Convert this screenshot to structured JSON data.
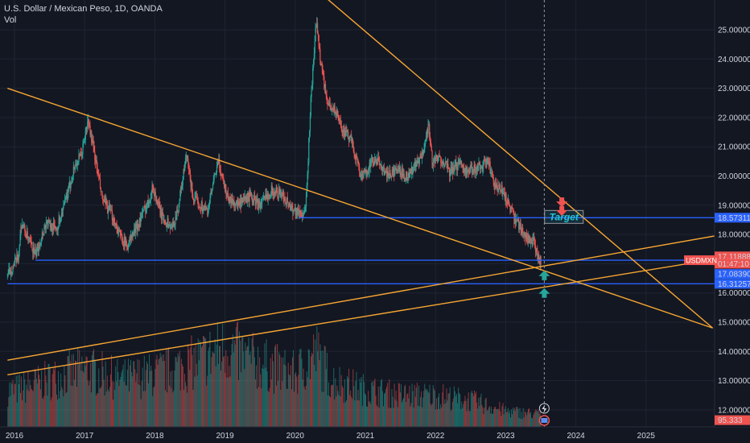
{
  "header": {
    "title": "U.S. Dollar / Mexican Peso, 1D, OANDA",
    "volume_label": "Vol"
  },
  "colors": {
    "background": "#131722",
    "grid": "#1f2433",
    "text": "#d1d4dc",
    "up": "#26a69a",
    "down": "#ef5350",
    "trendline": "#f7a632",
    "hline": "#2962ff",
    "target": "#26c6da"
  },
  "chart_data": {
    "type": "candlestick",
    "symbol": "USDMXN",
    "x_ticks": [
      "2016",
      "2017",
      "2018",
      "2019",
      "2020",
      "2021",
      "2022",
      "2023",
      "2024",
      "2025"
    ],
    "y_ticks": [
      "25.00000",
      "24.00000",
      "23.00000",
      "22.00000",
      "21.00000",
      "20.00000",
      "19.00000",
      "18.00000",
      "17.00000",
      "16.00000",
      "15.00000",
      "14.00000",
      "13.00000",
      "12.00000"
    ],
    "y_range": [
      11.6,
      26.0
    ],
    "price_path": [
      {
        "t": 2015.9,
        "p": 16.6
      },
      {
        "t": 2016.05,
        "p": 17.2
      },
      {
        "t": 2016.1,
        "p": 18.4
      },
      {
        "t": 2016.2,
        "p": 17.8
      },
      {
        "t": 2016.3,
        "p": 17.3
      },
      {
        "t": 2016.45,
        "p": 18.4
      },
      {
        "t": 2016.6,
        "p": 18.2
      },
      {
        "t": 2016.75,
        "p": 19.3
      },
      {
        "t": 2016.85,
        "p": 20.3
      },
      {
        "t": 2016.95,
        "p": 20.7
      },
      {
        "t": 2017.05,
        "p": 21.9
      },
      {
        "t": 2017.15,
        "p": 20.6
      },
      {
        "t": 2017.25,
        "p": 19.2
      },
      {
        "t": 2017.4,
        "p": 18.6
      },
      {
        "t": 2017.5,
        "p": 18.0
      },
      {
        "t": 2017.6,
        "p": 17.6
      },
      {
        "t": 2017.75,
        "p": 18.3
      },
      {
        "t": 2017.9,
        "p": 19.1
      },
      {
        "t": 2017.97,
        "p": 19.6
      },
      {
        "t": 2018.1,
        "p": 18.6
      },
      {
        "t": 2018.25,
        "p": 18.2
      },
      {
        "t": 2018.33,
        "p": 18.9
      },
      {
        "t": 2018.45,
        "p": 20.7
      },
      {
        "t": 2018.55,
        "p": 19.2
      },
      {
        "t": 2018.75,
        "p": 18.8
      },
      {
        "t": 2018.9,
        "p": 20.5
      },
      {
        "t": 2019.05,
        "p": 19.2
      },
      {
        "t": 2019.2,
        "p": 19.0
      },
      {
        "t": 2019.35,
        "p": 19.3
      },
      {
        "t": 2019.5,
        "p": 19.0
      },
      {
        "t": 2019.65,
        "p": 19.5
      },
      {
        "t": 2019.8,
        "p": 19.4
      },
      {
        "t": 2019.95,
        "p": 18.9
      },
      {
        "t": 2020.1,
        "p": 18.7
      },
      {
        "t": 2020.15,
        "p": 18.8
      },
      {
        "t": 2020.22,
        "p": 22.5
      },
      {
        "t": 2020.3,
        "p": 25.3
      },
      {
        "t": 2020.35,
        "p": 24.2
      },
      {
        "t": 2020.45,
        "p": 22.5
      },
      {
        "t": 2020.55,
        "p": 22.3
      },
      {
        "t": 2020.7,
        "p": 21.5
      },
      {
        "t": 2020.8,
        "p": 21.2
      },
      {
        "t": 2020.95,
        "p": 19.9
      },
      {
        "t": 2021.1,
        "p": 20.5
      },
      {
        "t": 2021.2,
        "p": 20.5
      },
      {
        "t": 2021.3,
        "p": 20.0
      },
      {
        "t": 2021.45,
        "p": 20.2
      },
      {
        "t": 2021.6,
        "p": 20.0
      },
      {
        "t": 2021.8,
        "p": 20.6
      },
      {
        "t": 2021.9,
        "p": 21.8
      },
      {
        "t": 2021.95,
        "p": 20.5
      },
      {
        "t": 2022.1,
        "p": 20.6
      },
      {
        "t": 2022.2,
        "p": 20.1
      },
      {
        "t": 2022.35,
        "p": 20.5
      },
      {
        "t": 2022.45,
        "p": 20.1
      },
      {
        "t": 2022.6,
        "p": 20.3
      },
      {
        "t": 2022.75,
        "p": 20.5
      },
      {
        "t": 2022.85,
        "p": 19.6
      },
      {
        "t": 2022.95,
        "p": 19.5
      },
      {
        "t": 2023.05,
        "p": 19.0
      },
      {
        "t": 2023.12,
        "p": 18.5
      },
      {
        "t": 2023.2,
        "p": 18.3
      },
      {
        "t": 2023.3,
        "p": 17.9
      },
      {
        "t": 2023.4,
        "p": 17.7
      },
      {
        "t": 2023.45,
        "p": 17.2
      },
      {
        "t": 2023.5,
        "p": 17.1
      }
    ],
    "trendlines": [
      {
        "from": {
          "t": 2015.9,
          "p": 23.0
        },
        "to": {
          "t": 2025.95,
          "p": 14.8
        }
      },
      {
        "from": {
          "t": 2019.85,
          "p": 27.3
        },
        "to": {
          "t": 2025.95,
          "p": 14.8
        }
      },
      {
        "from": {
          "t": 2015.9,
          "p": 13.7
        },
        "to": {
          "t": 2026.1,
          "p": 18.0
        }
      },
      {
        "from": {
          "t": 2015.9,
          "p": 13.2
        },
        "to": {
          "t": 2026.1,
          "p": 17.2
        }
      }
    ],
    "horizontal_lines": [
      {
        "price": 18.57311,
        "from_t": 2020.05,
        "style": "solid"
      },
      {
        "price": 17.11888,
        "from_t": 2016.3,
        "style": "solid"
      },
      {
        "price": 16.31257,
        "from_t": 2015.9,
        "style": "solid"
      }
    ],
    "annotations": {
      "target_text": "Target",
      "target_at": {
        "t": 2023.83,
        "p": 18.6
      },
      "down_arrows_at": [
        {
          "t": 2023.8,
          "p": 19.1
        },
        {
          "t": 2023.8,
          "p": 18.8
        }
      ],
      "up_arrows_at": [
        {
          "t": 2023.55,
          "p": 16.6
        },
        {
          "t": 2023.55,
          "p": 16.0
        }
      ],
      "cursor_t": 2023.55
    },
    "price_labels": [
      {
        "text": "18.57311",
        "price": 18.57311,
        "color": "#2962ff"
      },
      {
        "text": "17.11888",
        "price": 17.25,
        "color": "#ef5350"
      },
      {
        "text": "01:47:10",
        "price": 17.0,
        "color": "#ef5350"
      },
      {
        "text": "17.08390",
        "price": 16.65,
        "color": "#2962ff"
      },
      {
        "text": "16.31257",
        "price": 16.31257,
        "color": "#2962ff"
      },
      {
        "text": "95.333",
        "price": 11.65,
        "color": "#ef5350"
      }
    ],
    "symbol_label": {
      "text": "USDMXN",
      "price": 17.12,
      "color": "#ef5350"
    },
    "volume_path": [
      {
        "t": 2016.0,
        "v": 0.35
      },
      {
        "t": 2016.5,
        "v": 0.45
      },
      {
        "t": 2017.0,
        "v": 0.55
      },
      {
        "t": 2017.5,
        "v": 0.45
      },
      {
        "t": 2018.0,
        "v": 0.5
      },
      {
        "t": 2018.5,
        "v": 0.6
      },
      {
        "t": 2019.0,
        "v": 0.75
      },
      {
        "t": 2019.5,
        "v": 0.6
      },
      {
        "t": 2020.0,
        "v": 0.5
      },
      {
        "t": 2020.3,
        "v": 0.7
      },
      {
        "t": 2020.5,
        "v": 0.45
      },
      {
        "t": 2021.0,
        "v": 0.35
      },
      {
        "t": 2021.5,
        "v": 0.3
      },
      {
        "t": 2022.0,
        "v": 0.3
      },
      {
        "t": 2022.5,
        "v": 0.25
      },
      {
        "t": 2023.0,
        "v": 0.15
      },
      {
        "t": 2023.5,
        "v": 0.12
      }
    ]
  }
}
